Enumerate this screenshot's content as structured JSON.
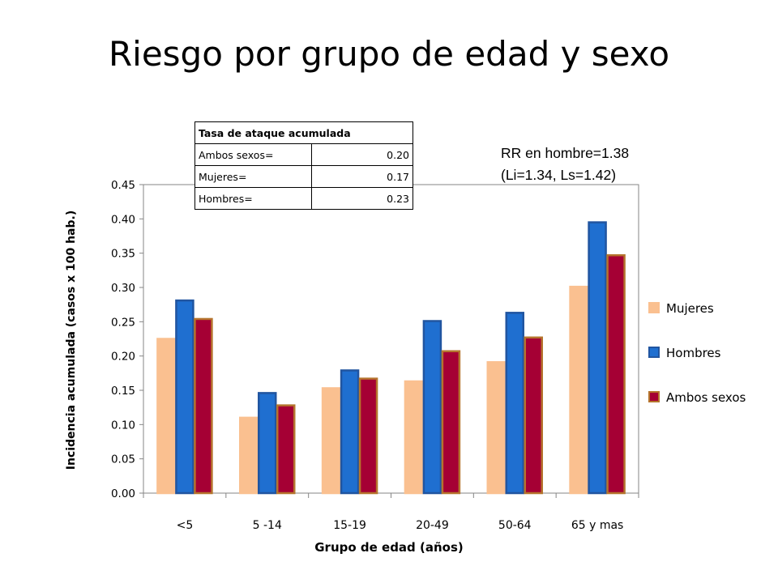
{
  "slide": {
    "title": "Riesgo por grupo de edad y sexo"
  },
  "rr_note": {
    "line1": "RR en hombre=1.38",
    "line2": "(Li=1.34, Ls=1.42)"
  },
  "attack_table": {
    "header": "Tasa de ataque acumulada",
    "rows": [
      {
        "label": "Ambos sexos=",
        "value": "0.20"
      },
      {
        "label": "Mujeres=",
        "value": "0.17"
      },
      {
        "label": "Hombres=",
        "value": "0.23"
      }
    ]
  },
  "chart_data": {
    "type": "bar",
    "xlabel": "Grupo de edad (años)",
    "ylabel": "Incidencia acumulada  (casos  x 100 hab.)",
    "ylim": [
      0,
      0.45
    ],
    "yticks": [
      "0.00",
      "0.05",
      "0.10",
      "0.15",
      "0.20",
      "0.25",
      "0.30",
      "0.35",
      "0.40",
      "0.45"
    ],
    "categories": [
      "<5",
      "5 -14",
      "15-19",
      "20-49",
      "50-64",
      "65 y mas"
    ],
    "series": [
      {
        "name": "Mujeres",
        "color": "#FAC090",
        "border": "#FAC090",
        "values": [
          0.225,
          0.11,
          0.153,
          0.163,
          0.191,
          0.301
        ]
      },
      {
        "name": "Hombres",
        "color": "#1F6FD0",
        "border": "#2155A0",
        "values": [
          0.281,
          0.146,
          0.179,
          0.251,
          0.263,
          0.395
        ]
      },
      {
        "name": "Ambos sexos",
        "color": "#A50034",
        "border": "#B5742D",
        "values": [
          0.254,
          0.128,
          0.167,
          0.207,
          0.227,
          0.347
        ]
      }
    ],
    "grid": false,
    "legend_position": "right"
  }
}
